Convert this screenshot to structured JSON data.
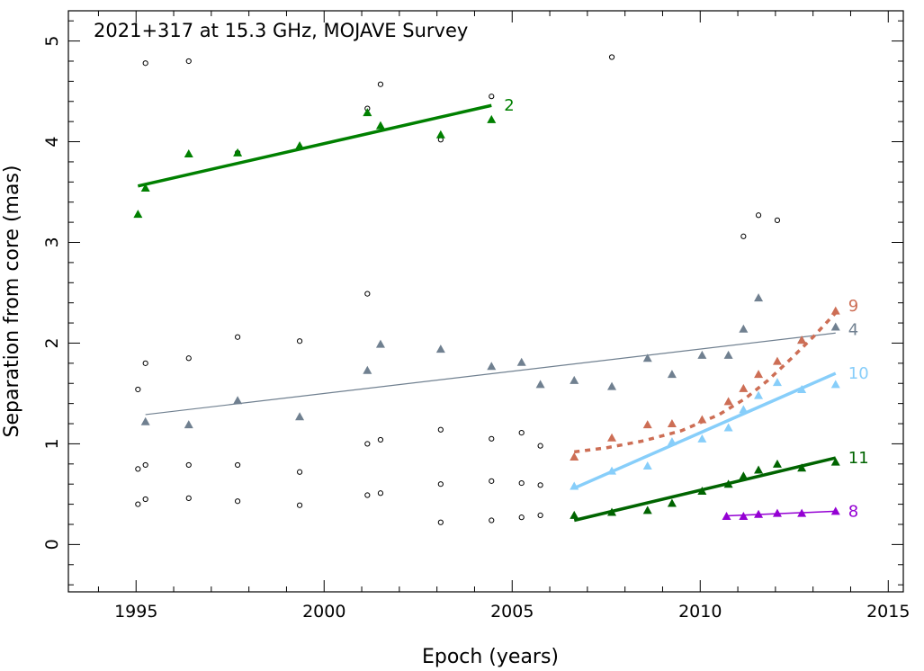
{
  "chart_data": {
    "type": "scatter",
    "title": "2021+317 at 15.3 GHz, MOJAVE Survey",
    "xlabel": "Epoch (years)",
    "ylabel": "Separation from core (mas)",
    "xlim": [
      1993.2,
      2015.4
    ],
    "ylim": [
      -0.47,
      5.3
    ],
    "xticks": [
      1995,
      2000,
      2005,
      2010,
      2015
    ],
    "yticks": [
      0,
      1,
      2,
      3,
      4,
      5
    ],
    "grid": false,
    "legend": "none",
    "unassigned_points": [
      [
        1995.05,
        0.4
      ],
      [
        1995.05,
        0.75
      ],
      [
        1995.05,
        1.54
      ],
      [
        1995.25,
        0.45
      ],
      [
        1995.25,
        0.79
      ],
      [
        1995.25,
        1.8
      ],
      [
        1995.25,
        4.78
      ],
      [
        1996.4,
        0.46
      ],
      [
        1996.4,
        0.79
      ],
      [
        1996.4,
        1.85
      ],
      [
        1996.4,
        4.8
      ],
      [
        1997.7,
        0.43
      ],
      [
        1997.7,
        0.79
      ],
      [
        1997.7,
        2.06
      ],
      [
        1997.7,
        3.89
      ],
      [
        1999.35,
        0.39
      ],
      [
        1999.35,
        0.72
      ],
      [
        1999.35,
        2.02
      ],
      [
        2001.15,
        0.49
      ],
      [
        2001.15,
        1.0
      ],
      [
        2001.15,
        2.49
      ],
      [
        2001.15,
        4.33
      ],
      [
        2001.5,
        0.51
      ],
      [
        2001.5,
        1.04
      ],
      [
        2001.5,
        4.57
      ],
      [
        2003.1,
        0.22
      ],
      [
        2003.1,
        0.6
      ],
      [
        2003.1,
        1.14
      ],
      [
        2003.1,
        4.02
      ],
      [
        2004.45,
        0.24
      ],
      [
        2004.45,
        0.63
      ],
      [
        2004.45,
        1.05
      ],
      [
        2004.45,
        4.45
      ],
      [
        2005.25,
        0.27
      ],
      [
        2005.25,
        0.61
      ],
      [
        2005.25,
        1.11
      ],
      [
        2005.75,
        0.29
      ],
      [
        2005.75,
        0.59
      ],
      [
        2005.75,
        0.98
      ],
      [
        2007.65,
        4.84
      ],
      [
        2011.15,
        3.06
      ],
      [
        2011.55,
        3.27
      ],
      [
        2012.05,
        3.22
      ]
    ],
    "series": [
      {
        "name": "2",
        "color": "#008000",
        "points": [
          [
            1995.05,
            3.28
          ],
          [
            1995.25,
            3.54
          ],
          [
            1996.4,
            3.88
          ],
          [
            1997.7,
            3.89
          ],
          [
            1999.35,
            3.96
          ],
          [
            2001.15,
            4.29
          ],
          [
            2001.5,
            4.16
          ],
          [
            2003.1,
            4.07
          ],
          [
            2004.45,
            4.22
          ]
        ],
        "fit": {
          "style": "solid",
          "width": 3.5,
          "points": [
            [
              1995.05,
              3.56
            ],
            [
              2004.45,
              4.36
            ]
          ]
        }
      },
      {
        "name": "4",
        "color": "#708090",
        "points": [
          [
            1995.25,
            1.22
          ],
          [
            1996.4,
            1.19
          ],
          [
            1997.7,
            1.43
          ],
          [
            1999.35,
            1.27
          ],
          [
            2001.15,
            1.73
          ],
          [
            2001.5,
            1.99
          ],
          [
            2003.1,
            1.94
          ],
          [
            2004.45,
            1.77
          ],
          [
            2005.25,
            1.81
          ],
          [
            2005.75,
            1.59
          ],
          [
            2006.65,
            1.63
          ],
          [
            2007.65,
            1.57
          ],
          [
            2008.6,
            1.85
          ],
          [
            2009.25,
            1.69
          ],
          [
            2010.05,
            1.88
          ],
          [
            2010.75,
            1.88
          ],
          [
            2011.15,
            2.14
          ],
          [
            2011.55,
            2.45
          ],
          [
            2012.7,
            2.03
          ],
          [
            2013.6,
            2.16
          ]
        ],
        "fit": {
          "style": "solid",
          "width": 1.2,
          "points": [
            [
              1995.25,
              1.29
            ],
            [
              2013.6,
              2.1
            ]
          ]
        }
      },
      {
        "name": "8",
        "color": "#9400D3",
        "points": [
          [
            2010.7,
            0.28
          ],
          [
            2011.15,
            0.28
          ],
          [
            2011.55,
            0.3
          ],
          [
            2012.05,
            0.31
          ],
          [
            2012.7,
            0.31
          ],
          [
            2013.6,
            0.33
          ]
        ],
        "fit": {
          "style": "solid",
          "width": 1.5,
          "points": [
            [
              2010.7,
              0.285
            ],
            [
              2013.6,
              0.33
            ]
          ]
        }
      },
      {
        "name": "9",
        "color": "#CD6E55",
        "points": [
          [
            2006.65,
            0.87
          ],
          [
            2007.65,
            1.06
          ],
          [
            2008.6,
            1.19
          ],
          [
            2009.25,
            1.2
          ],
          [
            2010.05,
            1.24
          ],
          [
            2010.75,
            1.42
          ],
          [
            2011.15,
            1.55
          ],
          [
            2011.55,
            1.69
          ],
          [
            2012.05,
            1.82
          ],
          [
            2012.7,
            2.03
          ],
          [
            2013.6,
            2.32
          ]
        ],
        "fit": {
          "style": "dotted",
          "width": 3.5,
          "points": [
            [
              2006.65,
              0.92
            ],
            [
              2007.5,
              0.96
            ],
            [
              2008.5,
              1.03
            ],
            [
              2009.5,
              1.13
            ],
            [
              2010.5,
              1.29
            ],
            [
              2011.2,
              1.45
            ],
            [
              2011.8,
              1.63
            ],
            [
              2012.4,
              1.84
            ],
            [
              2013.0,
              2.06
            ],
            [
              2013.6,
              2.3
            ]
          ]
        }
      },
      {
        "name": "10",
        "color": "#87CEFA",
        "points": [
          [
            2006.65,
            0.58
          ],
          [
            2007.65,
            0.73
          ],
          [
            2008.6,
            0.78
          ],
          [
            2009.25,
            1.02
          ],
          [
            2010.05,
            1.05
          ],
          [
            2010.75,
            1.16
          ],
          [
            2011.15,
            1.34
          ],
          [
            2011.55,
            1.48
          ],
          [
            2012.05,
            1.61
          ],
          [
            2012.7,
            1.54
          ],
          [
            2013.6,
            1.59
          ]
        ],
        "fit": {
          "style": "solid",
          "width": 3.5,
          "points": [
            [
              2006.65,
              0.56
            ],
            [
              2013.6,
              1.7
            ]
          ]
        }
      },
      {
        "name": "11",
        "color": "#006400",
        "points": [
          [
            2006.65,
            0.29
          ],
          [
            2007.65,
            0.32
          ],
          [
            2008.6,
            0.34
          ],
          [
            2009.25,
            0.41
          ],
          [
            2010.05,
            0.53
          ],
          [
            2010.75,
            0.6
          ],
          [
            2011.15,
            0.68
          ],
          [
            2011.55,
            0.74
          ],
          [
            2012.05,
            0.8
          ],
          [
            2012.7,
            0.76
          ],
          [
            2013.6,
            0.82
          ]
        ],
        "fit": {
          "style": "solid",
          "width": 3.5,
          "points": [
            [
              2006.65,
              0.24
            ],
            [
              2013.6,
              0.86
            ]
          ]
        }
      }
    ]
  }
}
